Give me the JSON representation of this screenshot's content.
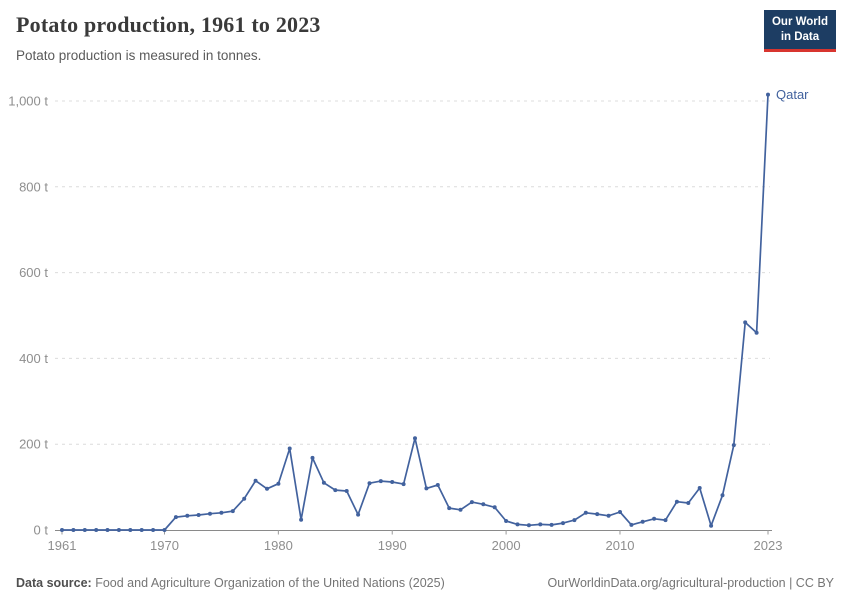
{
  "header": {
    "title": "Potato production, 1961 to 2023",
    "subtitle": "Potato production is measured in tonnes."
  },
  "logo": {
    "line1": "Our World",
    "line2": "in Data",
    "bg_color": "#1d3d63",
    "accent_color": "#d8352f"
  },
  "footer": {
    "source_label": "Data source:",
    "source_text": "Food and Agriculture Organization of the United Nations (2025)",
    "credit": "OurWorldinData.org/agricultural-production | CC BY"
  },
  "chart_data": {
    "type": "line",
    "title": "Potato production, 1961 to 2023",
    "xlabel": "",
    "ylabel": "",
    "unit": "t",
    "x_range": [
      1961,
      2023
    ],
    "ylim": [
      0,
      1000
    ],
    "grid": "dashed-horizontal",
    "y_ticks": [
      {
        "v": 0,
        "label": "0 t"
      },
      {
        "v": 200,
        "label": "200 t"
      },
      {
        "v": 400,
        "label": "400 t"
      },
      {
        "v": 600,
        "label": "600 t"
      },
      {
        "v": 800,
        "label": "800 t"
      },
      {
        "v": 1000,
        "label": "1,000 t"
      }
    ],
    "x_ticks": [
      {
        "v": 1961,
        "label": "1961"
      },
      {
        "v": 1970,
        "label": "1970"
      },
      {
        "v": 1980,
        "label": "1980"
      },
      {
        "v": 1990,
        "label": "1990"
      },
      {
        "v": 2000,
        "label": "2000"
      },
      {
        "v": 2010,
        "label": "2010"
      },
      {
        "v": 2023,
        "label": "2023"
      }
    ],
    "series": [
      {
        "name": "Qatar",
        "color": "#42629e",
        "points": [
          [
            1961,
            0
          ],
          [
            1962,
            0
          ],
          [
            1963,
            0
          ],
          [
            1964,
            0
          ],
          [
            1965,
            0
          ],
          [
            1966,
            0
          ],
          [
            1967,
            0
          ],
          [
            1968,
            0
          ],
          [
            1969,
            0
          ],
          [
            1970,
            0
          ],
          [
            1971,
            30
          ],
          [
            1972,
            33
          ],
          [
            1973,
            35
          ],
          [
            1974,
            38
          ],
          [
            1975,
            40
          ],
          [
            1976,
            44
          ],
          [
            1977,
            73
          ],
          [
            1978,
            115
          ],
          [
            1979,
            96
          ],
          [
            1980,
            108
          ],
          [
            1981,
            190
          ],
          [
            1982,
            24
          ],
          [
            1983,
            168
          ],
          [
            1984,
            110
          ],
          [
            1985,
            93
          ],
          [
            1986,
            91
          ],
          [
            1987,
            36
          ],
          [
            1988,
            109
          ],
          [
            1989,
            114
          ],
          [
            1990,
            112
          ],
          [
            1991,
            107
          ],
          [
            1992,
            214
          ],
          [
            1993,
            97
          ],
          [
            1994,
            105
          ],
          [
            1995,
            51
          ],
          [
            1996,
            47
          ],
          [
            1997,
            65
          ],
          [
            1998,
            60
          ],
          [
            1999,
            53
          ],
          [
            2000,
            21
          ],
          [
            2001,
            13
          ],
          [
            2002,
            11
          ],
          [
            2003,
            13
          ],
          [
            2004,
            12
          ],
          [
            2005,
            16
          ],
          [
            2006,
            23
          ],
          [
            2007,
            40
          ],
          [
            2008,
            37
          ],
          [
            2009,
            33
          ],
          [
            2010,
            42
          ],
          [
            2011,
            12
          ],
          [
            2012,
            19
          ],
          [
            2013,
            26
          ],
          [
            2014,
            23
          ],
          [
            2015,
            66
          ],
          [
            2016,
            63
          ],
          [
            2017,
            98
          ],
          [
            2018,
            10
          ],
          [
            2019,
            81
          ],
          [
            2020,
            198
          ],
          [
            2021,
            484
          ],
          [
            2022,
            460
          ],
          [
            2023,
            1015
          ]
        ]
      }
    ],
    "legend": "entity-label-at-line-end"
  }
}
